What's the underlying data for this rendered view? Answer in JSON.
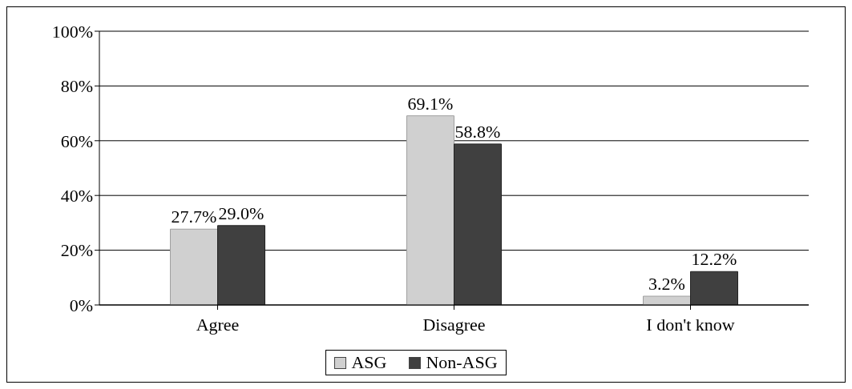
{
  "chart_data": {
    "type": "bar",
    "categories": [
      "Agree",
      "Disagree",
      "I don't know"
    ],
    "series": [
      {
        "name": "ASG",
        "color": "#d0d0d0",
        "values": [
          27.7,
          69.1,
          3.2
        ],
        "value_labels": [
          "27.7%",
          "69.1%",
          "3.2%"
        ]
      },
      {
        "name": "Non-ASG",
        "color": "#404040",
        "values": [
          29.0,
          58.8,
          12.2
        ],
        "value_labels": [
          "29.0%",
          "58.8%",
          "12.2%"
        ]
      }
    ],
    "ylim": [
      0,
      100
    ],
    "yticks": [
      {
        "value": 0,
        "label": "0%"
      },
      {
        "value": 20,
        "label": "20%"
      },
      {
        "value": 40,
        "label": "40%"
      },
      {
        "value": 60,
        "label": "60%"
      },
      {
        "value": 80,
        "label": "80%"
      },
      {
        "value": 100,
        "label": "100%"
      }
    ],
    "grid": "y",
    "legend": "bottom"
  }
}
